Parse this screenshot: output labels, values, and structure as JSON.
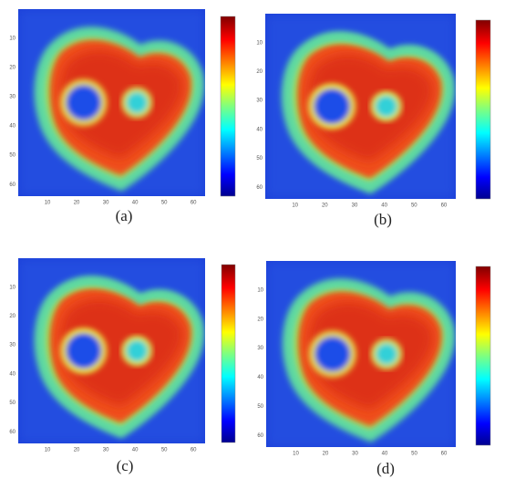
{
  "panels": [
    {
      "label": "(a)",
      "xticks": [
        10,
        20,
        30,
        40,
        50,
        60
      ],
      "yticks": [
        10,
        20,
        30,
        40,
        50,
        60
      ]
    },
    {
      "label": "(b)",
      "xticks": [
        10,
        20,
        30,
        40,
        50,
        60
      ],
      "yticks": [
        10,
        20,
        30,
        40,
        50,
        60
      ]
    },
    {
      "label": "(c)",
      "xticks": [
        10,
        20,
        30,
        40,
        50,
        60
      ],
      "yticks": [
        10,
        20,
        30,
        40,
        50,
        60
      ]
    },
    {
      "label": "(d)",
      "xticks": [
        10,
        20,
        30,
        40,
        50,
        60
      ],
      "yticks": [
        10,
        20,
        30,
        40,
        50,
        60
      ]
    }
  ]
}
